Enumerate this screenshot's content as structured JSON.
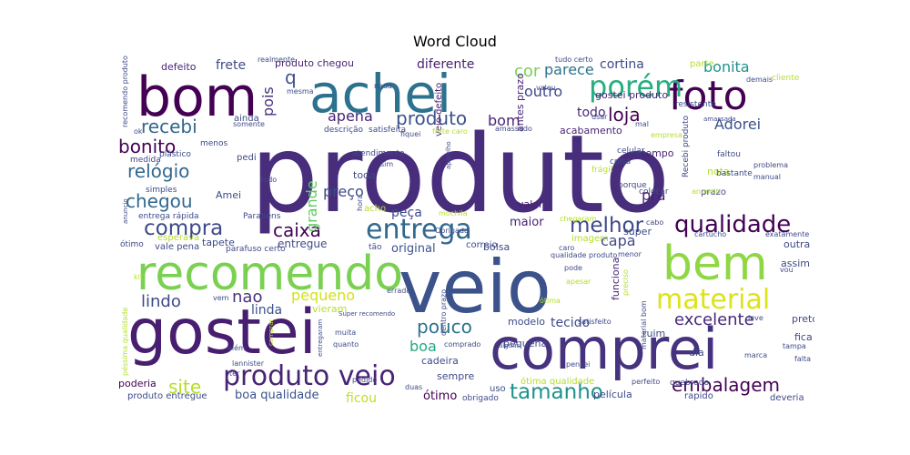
{
  "chart_data": {
    "type": "wordcloud",
    "title": "Word Cloud",
    "words": [
      {
        "text": "produto",
        "weight": 1.0,
        "color": "#472d7b"
      },
      {
        "text": "veio",
        "weight": 0.7,
        "color": "#3b528b"
      },
      {
        "text": "gostei",
        "weight": 0.62,
        "color": "#481f70"
      },
      {
        "text": "comprei",
        "weight": 0.56,
        "color": "#46327e"
      },
      {
        "text": "bom",
        "weight": 0.52,
        "color": "#440154"
      },
      {
        "text": "achei",
        "weight": 0.5,
        "color": "#2c728e"
      },
      {
        "text": "recomendo",
        "weight": 0.46,
        "color": "#7ad151"
      },
      {
        "text": "bem",
        "weight": 0.48,
        "color": "#8fd744"
      },
      {
        "text": "foto",
        "weight": 0.38,
        "color": "#440154"
      },
      {
        "text": "produto veio",
        "weight": 0.22,
        "color": "#482475"
      },
      {
        "text": "porém",
        "weight": 0.24,
        "color": "#28ae80"
      },
      {
        "text": "entrega",
        "weight": 0.22,
        "color": "#31688e"
      },
      {
        "text": "material",
        "weight": 0.22,
        "color": "#dde318"
      },
      {
        "text": "qualidade",
        "weight": 0.18,
        "color": "#440154"
      },
      {
        "text": "compra",
        "weight": 0.16,
        "color": "#3e4a89"
      },
      {
        "text": "tamanho",
        "weight": 0.17,
        "color": "#21918c"
      },
      {
        "text": "recebi",
        "weight": 0.15,
        "color": "#31688e"
      },
      {
        "text": "melhor",
        "weight": 0.16,
        "color": "#3e4a89"
      },
      {
        "text": "embalagem",
        "weight": 0.15,
        "color": "#440154"
      },
      {
        "text": "caixa",
        "weight": 0.14,
        "color": "#440154"
      },
      {
        "text": "chegou",
        "weight": 0.14,
        "color": "#31688e"
      },
      {
        "text": "relógio",
        "weight": 0.14,
        "color": "#31688e"
      },
      {
        "text": "bonito",
        "weight": 0.13,
        "color": "#440154"
      },
      {
        "text": "loja",
        "weight": 0.13,
        "color": "#440154"
      },
      {
        "text": "produto",
        "weight": 0.12,
        "color": "#3b528b"
      },
      {
        "text": "pouco",
        "weight": 0.14,
        "color": "#2c728e"
      },
      {
        "text": "site",
        "weight": 0.14,
        "color": "#b5de2b"
      },
      {
        "text": "lindo",
        "weight": 0.12,
        "color": "#3e4a89"
      },
      {
        "text": "excelente",
        "weight": 0.12,
        "color": "#482878"
      },
      {
        "text": "bonita",
        "weight": 0.1,
        "color": "#21918c"
      },
      {
        "text": "Adorei",
        "weight": 0.1,
        "color": "#3b528b"
      },
      {
        "text": "nao",
        "weight": 0.1,
        "color": "#46327e"
      },
      {
        "text": "pequeno",
        "weight": 0.1,
        "color": "#d2e21b"
      },
      {
        "text": "apena",
        "weight": 0.1,
        "color": "#482475"
      },
      {
        "text": "grande",
        "weight": 0.1,
        "color": "#5ec962"
      },
      {
        "text": "preço",
        "weight": 0.1,
        "color": "#3e4a89"
      },
      {
        "text": "q",
        "weight": 0.12,
        "color": "#3b528b"
      },
      {
        "text": "pois",
        "weight": 0.1,
        "color": "#46327e"
      },
      {
        "text": "cor",
        "weight": 0.1,
        "color": "#7ad151"
      },
      {
        "text": "parece",
        "weight": 0.09,
        "color": "#2c728e"
      },
      {
        "text": "outro",
        "weight": 0.09,
        "color": "#3e4a89"
      },
      {
        "text": "cortina",
        "weight": 0.08,
        "color": "#3e4a89"
      },
      {
        "text": "todo",
        "weight": 0.08,
        "color": "#482878"
      },
      {
        "text": "diferente",
        "weight": 0.08,
        "color": "#481f70"
      },
      {
        "text": "frete",
        "weight": 0.08,
        "color": "#3e4a89"
      },
      {
        "text": "bom",
        "weight": 0.08,
        "color": "#482475"
      },
      {
        "text": "boa",
        "weight": 0.09,
        "color": "#22a884"
      },
      {
        "text": "tecido",
        "weight": 0.08,
        "color": "#3e4a89"
      },
      {
        "text": "linda",
        "weight": 0.08,
        "color": "#3b528b"
      },
      {
        "text": "boa qualidade",
        "weight": 0.07,
        "color": "#3b528b"
      },
      {
        "text": "ficou",
        "weight": 0.07,
        "color": "#bddf26"
      },
      {
        "text": "ótimo",
        "weight": 0.07,
        "color": "#440154"
      },
      {
        "text": "pra",
        "weight": 0.09,
        "color": "#482475"
      },
      {
        "text": "capa",
        "weight": 0.08,
        "color": "#3e4a89"
      },
      {
        "text": "maior",
        "weight": 0.07,
        "color": "#481f70"
      },
      {
        "text": "original",
        "weight": 0.07,
        "color": "#3b528b"
      },
      {
        "text": "entregue",
        "weight": 0.06,
        "color": "#3e4a89"
      },
      {
        "text": "peça",
        "weight": 0.07,
        "color": "#3e4a89"
      },
      {
        "text": "produto chegou",
        "weight": 0.05,
        "color": "#482475"
      },
      {
        "text": "defeito",
        "weight": 0.05,
        "color": "#482475"
      },
      {
        "text": "gostei produto",
        "weight": 0.05,
        "color": "#482475"
      },
      {
        "text": "parte",
        "weight": 0.05,
        "color": "#b5de2b"
      },
      {
        "text": "veio defeito",
        "weight": 0.05,
        "color": "#482475"
      },
      {
        "text": "antes prazo",
        "weight": 0.05,
        "color": "#482475"
      },
      {
        "text": "valor",
        "weight": 0.05,
        "color": "#482475"
      },
      {
        "text": "tempo",
        "weight": 0.05,
        "color": "#482475"
      },
      {
        "text": "nota",
        "weight": 0.05,
        "color": "#b5de2b"
      },
      {
        "text": "acabamento",
        "weight": 0.05,
        "color": "#482475"
      },
      {
        "text": "super",
        "weight": 0.05,
        "color": "#3e4a89"
      },
      {
        "text": "funciona",
        "weight": 0.05,
        "color": "#482475"
      },
      {
        "text": "modelo",
        "weight": 0.05,
        "color": "#3e4a89"
      },
      {
        "text": "pequena",
        "weight": 0.05,
        "color": "#3e4a89"
      },
      {
        "text": "ruim",
        "weight": 0.05,
        "color": "#3e4a89"
      },
      {
        "text": "fica",
        "weight": 0.05,
        "color": "#3e4a89"
      },
      {
        "text": "dia",
        "weight": 0.05,
        "color": "#3e4a89"
      },
      {
        "text": "preto",
        "weight": 0.05,
        "color": "#3e4a89"
      },
      {
        "text": "assim",
        "weight": 0.05,
        "color": "#3e4a89"
      },
      {
        "text": "outra",
        "weight": 0.05,
        "color": "#3e4a89"
      },
      {
        "text": "sempre",
        "weight": 0.05,
        "color": "#3e4a89"
      },
      {
        "text": "cadeira",
        "weight": 0.05,
        "color": "#3e4a89"
      },
      {
        "text": "bolsa",
        "weight": 0.05,
        "color": "#3e4a89"
      },
      {
        "text": "correio",
        "weight": 0.05,
        "color": "#3e4a89"
      },
      {
        "text": "imagem",
        "weight": 0.05,
        "color": "#b5de2b"
      },
      {
        "text": "vieram",
        "weight": 0.05,
        "color": "#b5de2b"
      },
      {
        "text": "poderia",
        "weight": 0.05,
        "color": "#440154"
      },
      {
        "text": "produto entregue",
        "weight": 0.04,
        "color": "#3e4a89"
      },
      {
        "text": "ótima qualidade",
        "weight": 0.04,
        "color": "#b5de2b"
      },
      {
        "text": "película",
        "weight": 0.05,
        "color": "#3e4a89"
      },
      {
        "text": "deveria",
        "weight": 0.04,
        "color": "#3e4a89"
      },
      {
        "text": "rapido",
        "weight": 0.04,
        "color": "#3e4a89"
      },
      {
        "text": "quebrado",
        "weight": 0.04,
        "color": "#3e4a89"
      },
      {
        "text": "uso",
        "weight": 0.04,
        "color": "#3e4a89"
      },
      {
        "text": "obrigado",
        "weight": 0.04,
        "color": "#3e4a89"
      },
      {
        "text": "prazo",
        "weight": 0.04,
        "color": "#3e4a89"
      },
      {
        "text": "Recebi produto",
        "weight": 0.04,
        "color": "#3e4a89"
      },
      {
        "text": "Amei",
        "weight": 0.05,
        "color": "#3e4a89"
      },
      {
        "text": "ainda",
        "weight": 0.04,
        "color": "#3e4a89"
      },
      {
        "text": "pedi",
        "weight": 0.04,
        "color": "#3e4a89"
      },
      {
        "text": "toda",
        "weight": 0.04,
        "color": "#3e4a89"
      },
      {
        "text": "acho",
        "weight": 0.04,
        "color": "#b5de2b"
      },
      {
        "text": "tapete",
        "weight": 0.04,
        "color": "#3e4a89"
      },
      {
        "text": "vale pena",
        "weight": 0.04,
        "color": "#3e4a89"
      },
      {
        "text": "esperava",
        "weight": 0.04,
        "color": "#b5de2b"
      },
      {
        "text": "entrega rápida",
        "weight": 0.03,
        "color": "#3e4a89"
      },
      {
        "text": "simples",
        "weight": 0.04,
        "color": "#3e4a89"
      },
      {
        "text": "plástico",
        "weight": 0.03,
        "color": "#3e4a89"
      },
      {
        "text": "medida",
        "weight": 0.03,
        "color": "#3e4a89"
      },
      {
        "text": "menos",
        "weight": 0.03,
        "color": "#3e4a89"
      },
      {
        "text": "mesma",
        "weight": 0.03,
        "color": "#3e4a89"
      },
      {
        "text": "realmente",
        "weight": 0.03,
        "color": "#3e4a89"
      },
      {
        "text": "nada",
        "weight": 0.03,
        "color": "#3e4a89"
      },
      {
        "text": "somente",
        "weight": 0.03,
        "color": "#3e4a89"
      },
      {
        "text": "descrição",
        "weight": 0.03,
        "color": "#3e4a89"
      },
      {
        "text": "satisfeita",
        "weight": 0.03,
        "color": "#3e4a89"
      },
      {
        "text": "amassado",
        "weight": 0.03,
        "color": "#3e4a89"
      },
      {
        "text": "resistente",
        "weight": 0.03,
        "color": "#3e4a89"
      },
      {
        "text": "demais",
        "weight": 0.03,
        "color": "#3e4a89"
      },
      {
        "text": "cliente",
        "weight": 0.03,
        "color": "#b5de2b"
      },
      {
        "text": "tudo certo",
        "weight": 0.03,
        "color": "#3e4a89"
      },
      {
        "text": "valeu",
        "weight": 0.03,
        "color": "#3e4a89"
      },
      {
        "text": "usar",
        "weight": 0.03,
        "color": "#3e4a89"
      },
      {
        "text": "celular",
        "weight": 0.03,
        "color": "#3e4a89"
      },
      {
        "text": "frágil",
        "weight": 0.03,
        "color": "#b5de2b"
      },
      {
        "text": "coisa",
        "weight": 0.03,
        "color": "#3e4a89"
      },
      {
        "text": "porque",
        "weight": 0.03,
        "color": "#3e4a89"
      },
      {
        "text": "faltou",
        "weight": 0.03,
        "color": "#3e4a89"
      },
      {
        "text": "bastante",
        "weight": 0.03,
        "color": "#3e4a89"
      },
      {
        "text": "colocar",
        "weight": 0.03,
        "color": "#3e4a89"
      },
      {
        "text": "anuncio",
        "weight": 0.03,
        "color": "#b5de2b"
      },
      {
        "text": "problema",
        "weight": 0.03,
        "color": "#3e4a89"
      },
      {
        "text": "manual",
        "weight": 0.03,
        "color": "#3e4a89"
      },
      {
        "text": "cabo",
        "weight": 0.03,
        "color": "#3e4a89"
      },
      {
        "text": "cartucho",
        "weight": 0.03,
        "color": "#3e4a89"
      },
      {
        "text": "exatamente",
        "weight": 0.03,
        "color": "#3e4a89"
      },
      {
        "text": "caro",
        "weight": 0.03,
        "color": "#3e4a89"
      },
      {
        "text": "menor",
        "weight": 0.03,
        "color": "#3e4a89"
      },
      {
        "text": "Obrigada",
        "weight": 0.03,
        "color": "#3e4a89"
      },
      {
        "text": "hora",
        "weight": 0.03,
        "color": "#3e4a89"
      },
      {
        "text": "mochila",
        "weight": 0.03,
        "color": "#b5de2b"
      },
      {
        "text": "tão",
        "weight": 0.03,
        "color": "#3e4a89"
      },
      {
        "text": "Parabéns",
        "weight": 0.03,
        "color": "#3e4a89"
      },
      {
        "text": "parafuso certo",
        "weight": 0.03,
        "color": "#3e4a89"
      },
      {
        "text": "ótimo",
        "weight": 0.03,
        "color": "#3e4a89"
      },
      {
        "text": "kit",
        "weight": 0.03,
        "color": "#b5de2b"
      },
      {
        "text": "anuncio",
        "weight": 0.03,
        "color": "#3e4a89"
      },
      {
        "text": "qualidade produto",
        "weight": 0.03,
        "color": "#3e4a89"
      },
      {
        "text": "pode",
        "weight": 0.03,
        "color": "#3e4a89"
      },
      {
        "text": "preciso",
        "weight": 0.03,
        "color": "#b5de2b"
      },
      {
        "text": "vou",
        "weight": 0.03,
        "color": "#3e4a89"
      },
      {
        "text": "leve",
        "weight": 0.03,
        "color": "#3e4a89"
      },
      {
        "text": "satisfeito",
        "weight": 0.03,
        "color": "#3e4a89"
      },
      {
        "text": "tampa",
        "weight": 0.03,
        "color": "#3e4a89"
      },
      {
        "text": "falta",
        "weight": 0.03,
        "color": "#3e4a89"
      },
      {
        "text": "marca",
        "weight": 0.03,
        "color": "#3e4a89"
      },
      {
        "text": "perfeito",
        "weight": 0.03,
        "color": "#3e4a89"
      },
      {
        "text": "pensei",
        "weight": 0.03,
        "color": "#3e4a89"
      },
      {
        "text": "alguns",
        "weight": 0.03,
        "color": "#3e4a89"
      },
      {
        "text": "comprado",
        "weight": 0.03,
        "color": "#3e4a89"
      },
      {
        "text": "dentro prazo",
        "weight": 0.03,
        "color": "#3e4a89"
      },
      {
        "text": "errado",
        "weight": 0.03,
        "color": "#3e4a89"
      },
      {
        "text": "pedido",
        "weight": 0.03,
        "color": "#3e4a89"
      },
      {
        "text": "duas",
        "weight": 0.03,
        "color": "#3e4a89"
      },
      {
        "text": "muita",
        "weight": 0.03,
        "color": "#3e4a89"
      },
      {
        "text": "quanto",
        "weight": 0.03,
        "color": "#3e4a89"
      },
      {
        "text": "entregaram",
        "weight": 0.03,
        "color": "#3e4a89"
      },
      {
        "text": "além",
        "weight": 0.03,
        "color": "#3e4a89"
      },
      {
        "text": "lannister",
        "weight": 0.03,
        "color": "#3e4a89"
      },
      {
        "text": "ter",
        "weight": 0.03,
        "color": "#3e4a89"
      },
      {
        "text": "vem",
        "weight": 0.03,
        "color": "#3e4a89"
      },
      {
        "text": "comprar",
        "weight": 0.03,
        "color": "#b5de2b"
      },
      {
        "text": "Super recomendo",
        "weight": 0.03,
        "color": "#3e4a89"
      },
      {
        "text": "péssima qualidade",
        "weight": 0.03,
        "color": "#b5de2b"
      },
      {
        "text": "recomendo produto",
        "weight": 0.03,
        "color": "#3e4a89"
      },
      {
        "text": "ok",
        "weight": 0.03,
        "color": "#3e4a89"
      },
      {
        "text": "tudo",
        "weight": 0.03,
        "color": "#3e4a89"
      },
      {
        "text": "aparelho",
        "weight": 0.03,
        "color": "#3e4a89"
      },
      {
        "text": "atendimento",
        "weight": 0.03,
        "color": "#3e4a89"
      },
      {
        "text": "sim",
        "weight": 0.03,
        "color": "#3e4a89"
      },
      {
        "text": "frete caro",
        "weight": 0.03,
        "color": "#b5de2b"
      },
      {
        "text": "fiquei",
        "weight": 0.03,
        "color": "#3e4a89"
      },
      {
        "text": "amassada",
        "weight": 0.03,
        "color": "#3e4a89"
      },
      {
        "text": "empresa",
        "weight": 0.03,
        "color": "#b5de2b"
      },
      {
        "text": "mal",
        "weight": 0.03,
        "color": "#3e4a89"
      },
      {
        "text": "ótima",
        "weight": 0.03,
        "color": "#b5de2b"
      },
      {
        "text": "apesar",
        "weight": 0.03,
        "color": "#b5de2b"
      },
      {
        "text": "chegaram",
        "weight": 0.03,
        "color": "#b5de2b"
      },
      {
        "text": "material bom",
        "weight": 0.03,
        "color": "#3e4a89"
      }
    ]
  }
}
